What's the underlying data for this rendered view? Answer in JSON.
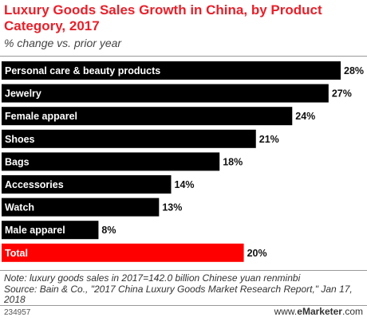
{
  "title": "Luxury Goods Sales Growth in China, by Product Category, 2017",
  "subtitle": "% change vs. prior year",
  "chart_data": {
    "type": "bar",
    "orientation": "horizontal",
    "title": "Luxury Goods Sales Growth in China, by Product Category, 2017",
    "subtitle": "% change vs. prior year",
    "categories": [
      "Personal care & beauty products",
      "Jewelry",
      "Female apparel",
      "Shoes",
      "Bags",
      "Accessories",
      "Watch",
      "Male apparel",
      "Total"
    ],
    "values": [
      28,
      27,
      24,
      21,
      18,
      14,
      13,
      8,
      20
    ],
    "value_labels": [
      "28%",
      "27%",
      "24%",
      "21%",
      "18%",
      "14%",
      "13%",
      "8%",
      "20%"
    ],
    "unit": "%",
    "xlim": [
      0,
      28
    ],
    "colors": {
      "default": "#000000",
      "Total": "#ff0000"
    },
    "grid": false,
    "legend": "none"
  },
  "note": "Note: luxury goods sales in 2017=142.0 billion Chinese yuan renminbi",
  "source": "Source: Bain & Co., \"2017 China Luxury Goods Market Research Report,\" Jan 17, 2018",
  "footer": {
    "id": "234957",
    "brand_prefix": "www.",
    "brand_e": "e",
    "brand_rest": "Marketer",
    "brand_suffix": ".com"
  }
}
